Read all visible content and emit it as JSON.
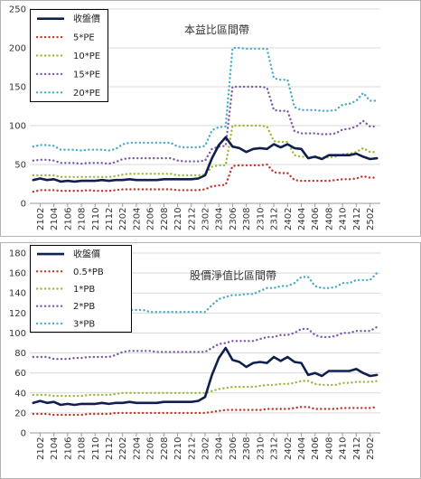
{
  "chart_data": [
    {
      "type": "line",
      "title": "本益比區間帶",
      "ylim": [
        0,
        250
      ],
      "yticks": [
        0,
        50,
        100,
        150,
        200,
        250
      ],
      "grid": true,
      "legend_position": "top-left",
      "x_labels": [
        "2102",
        "2104",
        "2106",
        "2108",
        "2110",
        "2112",
        "2202",
        "2204",
        "2206",
        "2208",
        "2210",
        "2212",
        "2302",
        "2304",
        "2306",
        "2308",
        "2310",
        "2312",
        "2402",
        "2404",
        "2406",
        "2408",
        "2410",
        "2412",
        "2502"
      ],
      "x": [
        "2101",
        "2102",
        "2103",
        "2104",
        "2105",
        "2106",
        "2107",
        "2108",
        "2109",
        "2110",
        "2111",
        "2112",
        "2201",
        "2202",
        "2203",
        "2204",
        "2205",
        "2206",
        "2207",
        "2208",
        "2209",
        "2210",
        "2211",
        "2212",
        "2301",
        "2302",
        "2303",
        "2304",
        "2305",
        "2306",
        "2307",
        "2308",
        "2309",
        "2310",
        "2311",
        "2312",
        "2401",
        "2402",
        "2403",
        "2404",
        "2405",
        "2406",
        "2407",
        "2408",
        "2409",
        "2410",
        "2411",
        "2412",
        "2501",
        "2502",
        "2503"
      ],
      "series": [
        {
          "name": "收盤價",
          "color": "#0f1f4e",
          "dash": "solid",
          "values": [
            30,
            32,
            30,
            31,
            28,
            29,
            28,
            29,
            29,
            29,
            30,
            29,
            30,
            30,
            31,
            30,
            30,
            30,
            30,
            31,
            31,
            31,
            31,
            31,
            32,
            36,
            58,
            75,
            85,
            73,
            71,
            66,
            70,
            71,
            70,
            76,
            72,
            76,
            71,
            70,
            58,
            60,
            57,
            62,
            62,
            62,
            62,
            64,
            60,
            57,
            58
          ]
        },
        {
          "name": "5*PE",
          "color": "#c0392b",
          "dash": "dot",
          "values": [
            15,
            17,
            17,
            17,
            16,
            16,
            16,
            16,
            17,
            16,
            16,
            16,
            17,
            18,
            18,
            18,
            18,
            18,
            18,
            18,
            18,
            17,
            17,
            17,
            17,
            18,
            22,
            23,
            24,
            48,
            49,
            49,
            49,
            49,
            50,
            40,
            39,
            39,
            30,
            29,
            29,
            29,
            29,
            29,
            30,
            31,
            31,
            32,
            35,
            33,
            33
          ]
        },
        {
          "name": "10*PE",
          "color": "#9bbb3b",
          "dash": "dot",
          "values": [
            36,
            36,
            36,
            36,
            34,
            34,
            34,
            34,
            34,
            34,
            34,
            34,
            35,
            37,
            38,
            38,
            38,
            38,
            38,
            38,
            38,
            36,
            36,
            36,
            36,
            37,
            47,
            49,
            49,
            100,
            100,
            100,
            100,
            100,
            99,
            80,
            79,
            79,
            62,
            60,
            60,
            59,
            59,
            59,
            60,
            63,
            64,
            66,
            71,
            66,
            66
          ]
        },
        {
          "name": "15*PE",
          "color": "#7e5ba6",
          "dash": "dot",
          "values": [
            55,
            56,
            56,
            55,
            52,
            52,
            52,
            51,
            52,
            52,
            52,
            51,
            53,
            57,
            58,
            58,
            58,
            58,
            58,
            58,
            58,
            55,
            54,
            54,
            54,
            55,
            70,
            73,
            74,
            150,
            150,
            150,
            150,
            150,
            149,
            120,
            119,
            119,
            93,
            90,
            90,
            90,
            89,
            89,
            90,
            95,
            96,
            99,
            106,
            99,
            99
          ]
        },
        {
          "name": "20*PE",
          "color": "#4bacc6",
          "dash": "dot",
          "values": [
            73,
            75,
            75,
            74,
            69,
            69,
            69,
            68,
            69,
            69,
            69,
            68,
            70,
            76,
            78,
            78,
            78,
            78,
            78,
            78,
            78,
            73,
            72,
            72,
            72,
            74,
            94,
            98,
            99,
            200,
            200,
            199,
            199,
            199,
            199,
            161,
            159,
            159,
            124,
            120,
            120,
            120,
            119,
            119,
            120,
            127,
            128,
            132,
            142,
            132,
            132
          ]
        }
      ]
    },
    {
      "type": "line",
      "title": "股價淨值比區間帶",
      "ylim": [
        0,
        180
      ],
      "yticks": [
        0,
        20,
        40,
        60,
        80,
        100,
        120,
        140,
        160,
        180
      ],
      "grid": true,
      "legend_position": "top-left",
      "x_labels": [
        "2102",
        "2104",
        "2106",
        "2108",
        "2110",
        "2112",
        "2202",
        "2204",
        "2206",
        "2208",
        "2210",
        "2212",
        "2302",
        "2304",
        "2306",
        "2308",
        "2310",
        "2312",
        "2402",
        "2404",
        "2406",
        "2408",
        "2410",
        "2412",
        "2502"
      ],
      "x": [
        "2101",
        "2102",
        "2103",
        "2104",
        "2105",
        "2106",
        "2107",
        "2108",
        "2109",
        "2110",
        "2111",
        "2112",
        "2201",
        "2202",
        "2203",
        "2204",
        "2205",
        "2206",
        "2207",
        "2208",
        "2209",
        "2210",
        "2211",
        "2212",
        "2301",
        "2302",
        "2303",
        "2304",
        "2305",
        "2306",
        "2307",
        "2308",
        "2309",
        "2310",
        "2311",
        "2312",
        "2401",
        "2402",
        "2403",
        "2404",
        "2405",
        "2406",
        "2407",
        "2408",
        "2409",
        "2410",
        "2411",
        "2412",
        "2501",
        "2502",
        "2503"
      ],
      "series": [
        {
          "name": "收盤價",
          "color": "#0f1f4e",
          "dash": "solid",
          "values": [
            30,
            32,
            30,
            31,
            28,
            29,
            28,
            29,
            29,
            29,
            30,
            29,
            30,
            30,
            31,
            30,
            30,
            30,
            30,
            31,
            31,
            31,
            31,
            31,
            32,
            36,
            58,
            75,
            85,
            73,
            71,
            66,
            70,
            71,
            70,
            76,
            72,
            76,
            71,
            70,
            58,
            60,
            57,
            62,
            62,
            62,
            62,
            64,
            60,
            57,
            58
          ]
        },
        {
          "name": "0.5*PB",
          "color": "#c0392b",
          "dash": "dot",
          "values": [
            19,
            19,
            19,
            18,
            18,
            18,
            18,
            18,
            19,
            19,
            19,
            19,
            20,
            20,
            20,
            20,
            20,
            20,
            20,
            20,
            20,
            20,
            20,
            20,
            20,
            20,
            21,
            22,
            23,
            23,
            23,
            23,
            23,
            23,
            24,
            24,
            24,
            24,
            25,
            26,
            26,
            24,
            24,
            24,
            24,
            25,
            25,
            25,
            25,
            25,
            26
          ]
        },
        {
          "name": "1*PB",
          "color": "#9bbb3b",
          "dash": "dot",
          "values": [
            38,
            38,
            38,
            37,
            37,
            37,
            37,
            37,
            38,
            38,
            38,
            38,
            39,
            40,
            40,
            40,
            40,
            40,
            40,
            40,
            40,
            40,
            40,
            40,
            40,
            40,
            42,
            44,
            45,
            46,
            46,
            46,
            46,
            47,
            48,
            48,
            49,
            49,
            50,
            52,
            52,
            49,
            48,
            48,
            48,
            50,
            50,
            51,
            51,
            51,
            52
          ]
        },
        {
          "name": "2*PB",
          "color": "#7e5ba6",
          "dash": "dot",
          "values": [
            76,
            76,
            76,
            74,
            74,
            74,
            75,
            75,
            76,
            76,
            76,
            76,
            78,
            81,
            82,
            82,
            82,
            82,
            81,
            81,
            81,
            81,
            81,
            81,
            81,
            81,
            85,
            89,
            90,
            92,
            92,
            92,
            92,
            94,
            96,
            96,
            98,
            98,
            100,
            104,
            104,
            98,
            96,
            96,
            97,
            100,
            100,
            102,
            102,
            102,
            106
          ]
        },
        {
          "name": "3*PB",
          "color": "#4bacc6",
          "dash": "dot",
          "values": [
            114,
            114,
            114,
            111,
            111,
            111,
            113,
            113,
            114,
            114,
            114,
            114,
            117,
            121,
            123,
            123,
            123,
            121,
            121,
            121,
            121,
            121,
            121,
            121,
            121,
            121,
            128,
            134,
            136,
            138,
            138,
            139,
            139,
            142,
            145,
            145,
            147,
            147,
            150,
            156,
            156,
            147,
            145,
            145,
            146,
            150,
            150,
            153,
            153,
            153,
            160
          ]
        }
      ]
    }
  ]
}
